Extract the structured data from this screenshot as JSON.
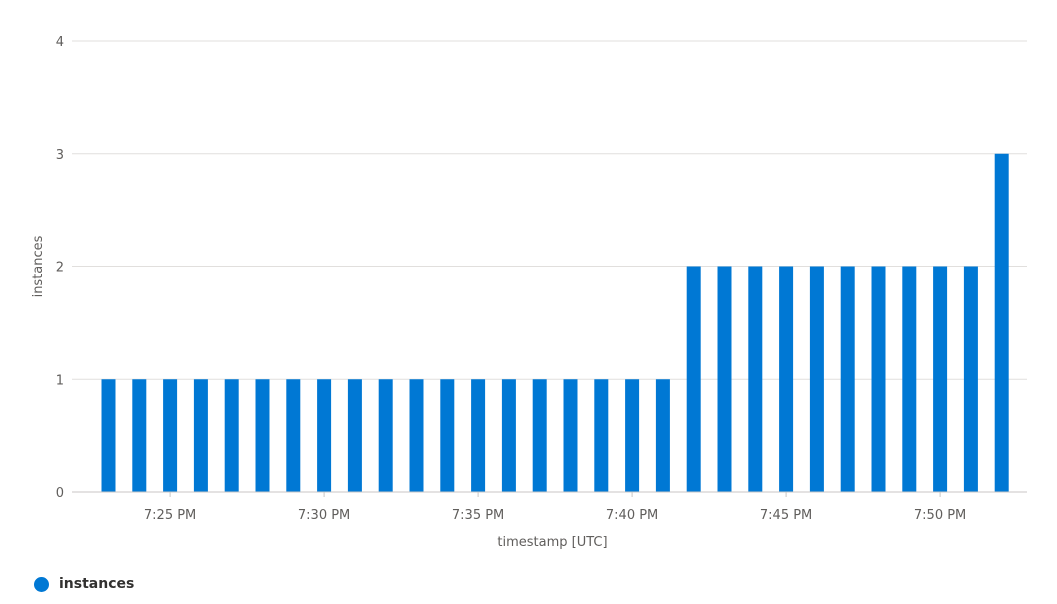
{
  "chart_data": {
    "type": "bar",
    "xlabel": "timestamp [UTC]",
    "ylabel": "instances",
    "ylim": [
      0,
      4
    ],
    "yticks": [
      "0",
      "1",
      "2",
      "3",
      "4"
    ],
    "xticks": [
      "7:25 PM",
      "7:30 PM",
      "7:35 PM",
      "7:40 PM",
      "7:45 PM",
      "7:50 PM"
    ],
    "grid": true,
    "legend_position": "bottom-left",
    "series": [
      {
        "name": "instances",
        "color": "#0078d4",
        "values": [
          1,
          1,
          1,
          1,
          1,
          1,
          1,
          1,
          1,
          1,
          1,
          1,
          1,
          1,
          1,
          1,
          1,
          1,
          1,
          2,
          2,
          2,
          2,
          2,
          2,
          2,
          2,
          2,
          2,
          3
        ]
      }
    ]
  }
}
